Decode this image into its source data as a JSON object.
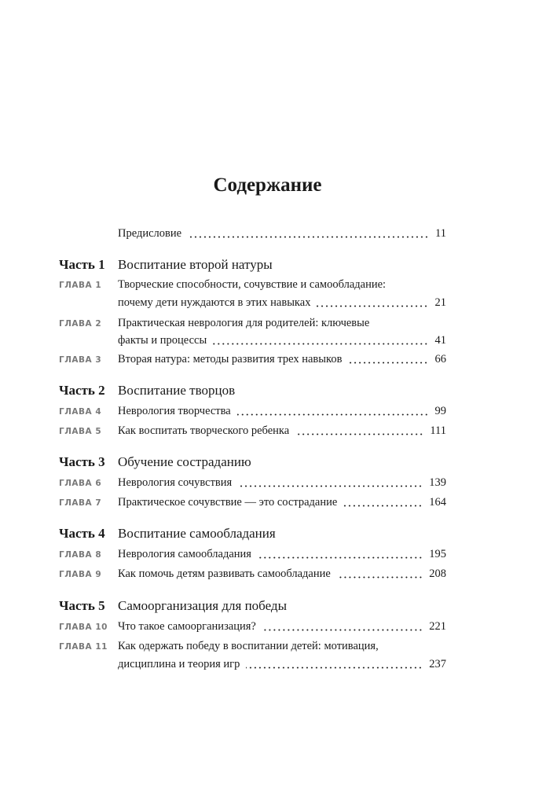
{
  "title": "Содержание",
  "preface": {
    "text": "Предисловие",
    "page": "11"
  },
  "parts": [
    {
      "label": "Часть 1",
      "title": "Воспитание второй натуры",
      "chapters": [
        {
          "label": "ГЛАВА 1",
          "line1": "Творческие способности, сочувствие и самообладание:",
          "line2": "почему дети нуждаются в этих навыках",
          "page": "21"
        },
        {
          "label": "ГЛАВА 2",
          "line1": "Практическая неврология для родителей: ключевые",
          "line2": "факты и процессы",
          "page": "41"
        },
        {
          "label": "ГЛАВА 3",
          "line1": "Вторая натура: методы развития трех навыков",
          "page": "66"
        }
      ]
    },
    {
      "label": "Часть 2",
      "title": "Воспитание творцов",
      "chapters": [
        {
          "label": "ГЛАВА 4",
          "line1": "Неврология творчества",
          "page": "99"
        },
        {
          "label": "ГЛАВА 5",
          "line1": "Как воспитать творческого ребенка",
          "page": "111"
        }
      ]
    },
    {
      "label": "Часть 3",
      "title": "Обучение состраданию",
      "chapters": [
        {
          "label": "ГЛАВА 6",
          "line1": "Неврология сочувствия",
          "page": "139"
        },
        {
          "label": "ГЛАВА 7",
          "line1": "Практическое сочувствие — это сострадание",
          "page": "164"
        }
      ]
    },
    {
      "label": "Часть 4",
      "title": "Воспитание самообладания",
      "chapters": [
        {
          "label": "ГЛАВА 8",
          "line1": "Неврология самообладания",
          "page": "195"
        },
        {
          "label": "ГЛАВА 9",
          "line1": "Как помочь детям развивать самообладание",
          "page": "208"
        }
      ]
    },
    {
      "label": "Часть 5",
      "title": "Самоорганизация для победы",
      "chapters": [
        {
          "label": "ГЛАВА 10",
          "line1": "Что такое самоорганизация?",
          "page": "221"
        },
        {
          "label": "ГЛАВА 11",
          "line1": "Как одержать победу в воспитании детей: мотивация,",
          "line2": "дисциплина и теория игр",
          "page": "237"
        }
      ]
    }
  ]
}
